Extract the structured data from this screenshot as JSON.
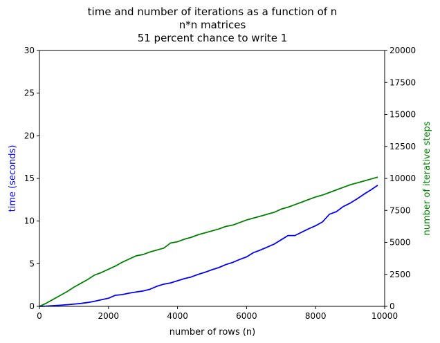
{
  "chart_data": {
    "type": "line",
    "title": [
      "time and number of iterations as a function of n",
      "n*n matrices",
      "51 percent chance to write 1"
    ],
    "xlabel": "number of rows (n)",
    "ylabel_left": "time (seconds)",
    "ylabel_right": "number of iterative steps",
    "xlim": [
      0,
      10000
    ],
    "ylim_left": [
      0,
      30
    ],
    "ylim_right": [
      0,
      20000
    ],
    "xticks": [
      "0",
      "2000",
      "4000",
      "6000",
      "8000",
      "10000"
    ],
    "yticks_left": [
      "0",
      "5",
      "10",
      "15",
      "20",
      "25",
      "30"
    ],
    "yticks_right": [
      "0",
      "2500",
      "5000",
      "7500",
      "10000",
      "12500",
      "15000",
      "17500",
      "20000"
    ],
    "grid": false,
    "colors": {
      "time": "#0000ff",
      "steps": "#008000",
      "axes": "#000000"
    },
    "series": [
      {
        "axis": "left",
        "color": "#0000ff",
        "x": [
          0,
          200,
          400,
          600,
          800,
          1000,
          1200,
          1400,
          1600,
          1800,
          2000,
          2200,
          2400,
          2600,
          2800,
          3000,
          3200,
          3400,
          3600,
          3800,
          4000,
          4200,
          4400,
          4600,
          4800,
          5000,
          5200,
          5400,
          5600,
          5800,
          6000,
          6200,
          6400,
          6600,
          6800,
          7000,
          7200,
          7400,
          7600,
          7800,
          8000,
          8200,
          8400,
          8600,
          8800,
          9000,
          9200,
          9400,
          9600,
          9800
        ],
        "y": [
          0,
          0.03,
          0.08,
          0.13,
          0.19,
          0.26,
          0.34,
          0.45,
          0.6,
          0.78,
          0.95,
          1.3,
          1.38,
          1.55,
          1.68,
          1.8,
          2.0,
          2.35,
          2.6,
          2.75,
          3.0,
          3.25,
          3.45,
          3.75,
          4.0,
          4.3,
          4.55,
          4.9,
          5.15,
          5.5,
          5.8,
          6.3,
          6.6,
          6.95,
          7.3,
          7.8,
          8.3,
          8.3,
          8.7,
          9.1,
          9.45,
          9.9,
          10.8,
          11.1,
          11.7,
          12.1,
          12.6,
          13.15,
          13.65,
          14.2
        ]
      },
      {
        "axis": "right",
        "color": "#008000",
        "x": [
          0,
          200,
          400,
          600,
          800,
          1000,
          1200,
          1400,
          1600,
          1800,
          2000,
          2200,
          2400,
          2600,
          2800,
          3000,
          3200,
          3400,
          3600,
          3800,
          4000,
          4200,
          4400,
          4600,
          4800,
          5000,
          5200,
          5400,
          5600,
          5800,
          6000,
          6200,
          6400,
          6600,
          6800,
          7000,
          7200,
          7400,
          7600,
          7800,
          8000,
          8200,
          8400,
          8600,
          8800,
          9000,
          9200,
          9400,
          9600,
          9800
        ],
        "y": [
          0,
          250,
          550,
          850,
          1150,
          1500,
          1800,
          2100,
          2450,
          2650,
          2900,
          3150,
          3450,
          3700,
          3950,
          4050,
          4250,
          4400,
          4550,
          4950,
          5050,
          5250,
          5400,
          5600,
          5750,
          5900,
          6050,
          6250,
          6350,
          6550,
          6750,
          6900,
          7050,
          7200,
          7350,
          7600,
          7750,
          7950,
          8150,
          8350,
          8550,
          8700,
          8900,
          9100,
          9300,
          9500,
          9650,
          9800,
          9950,
          10100
        ]
      }
    ]
  }
}
